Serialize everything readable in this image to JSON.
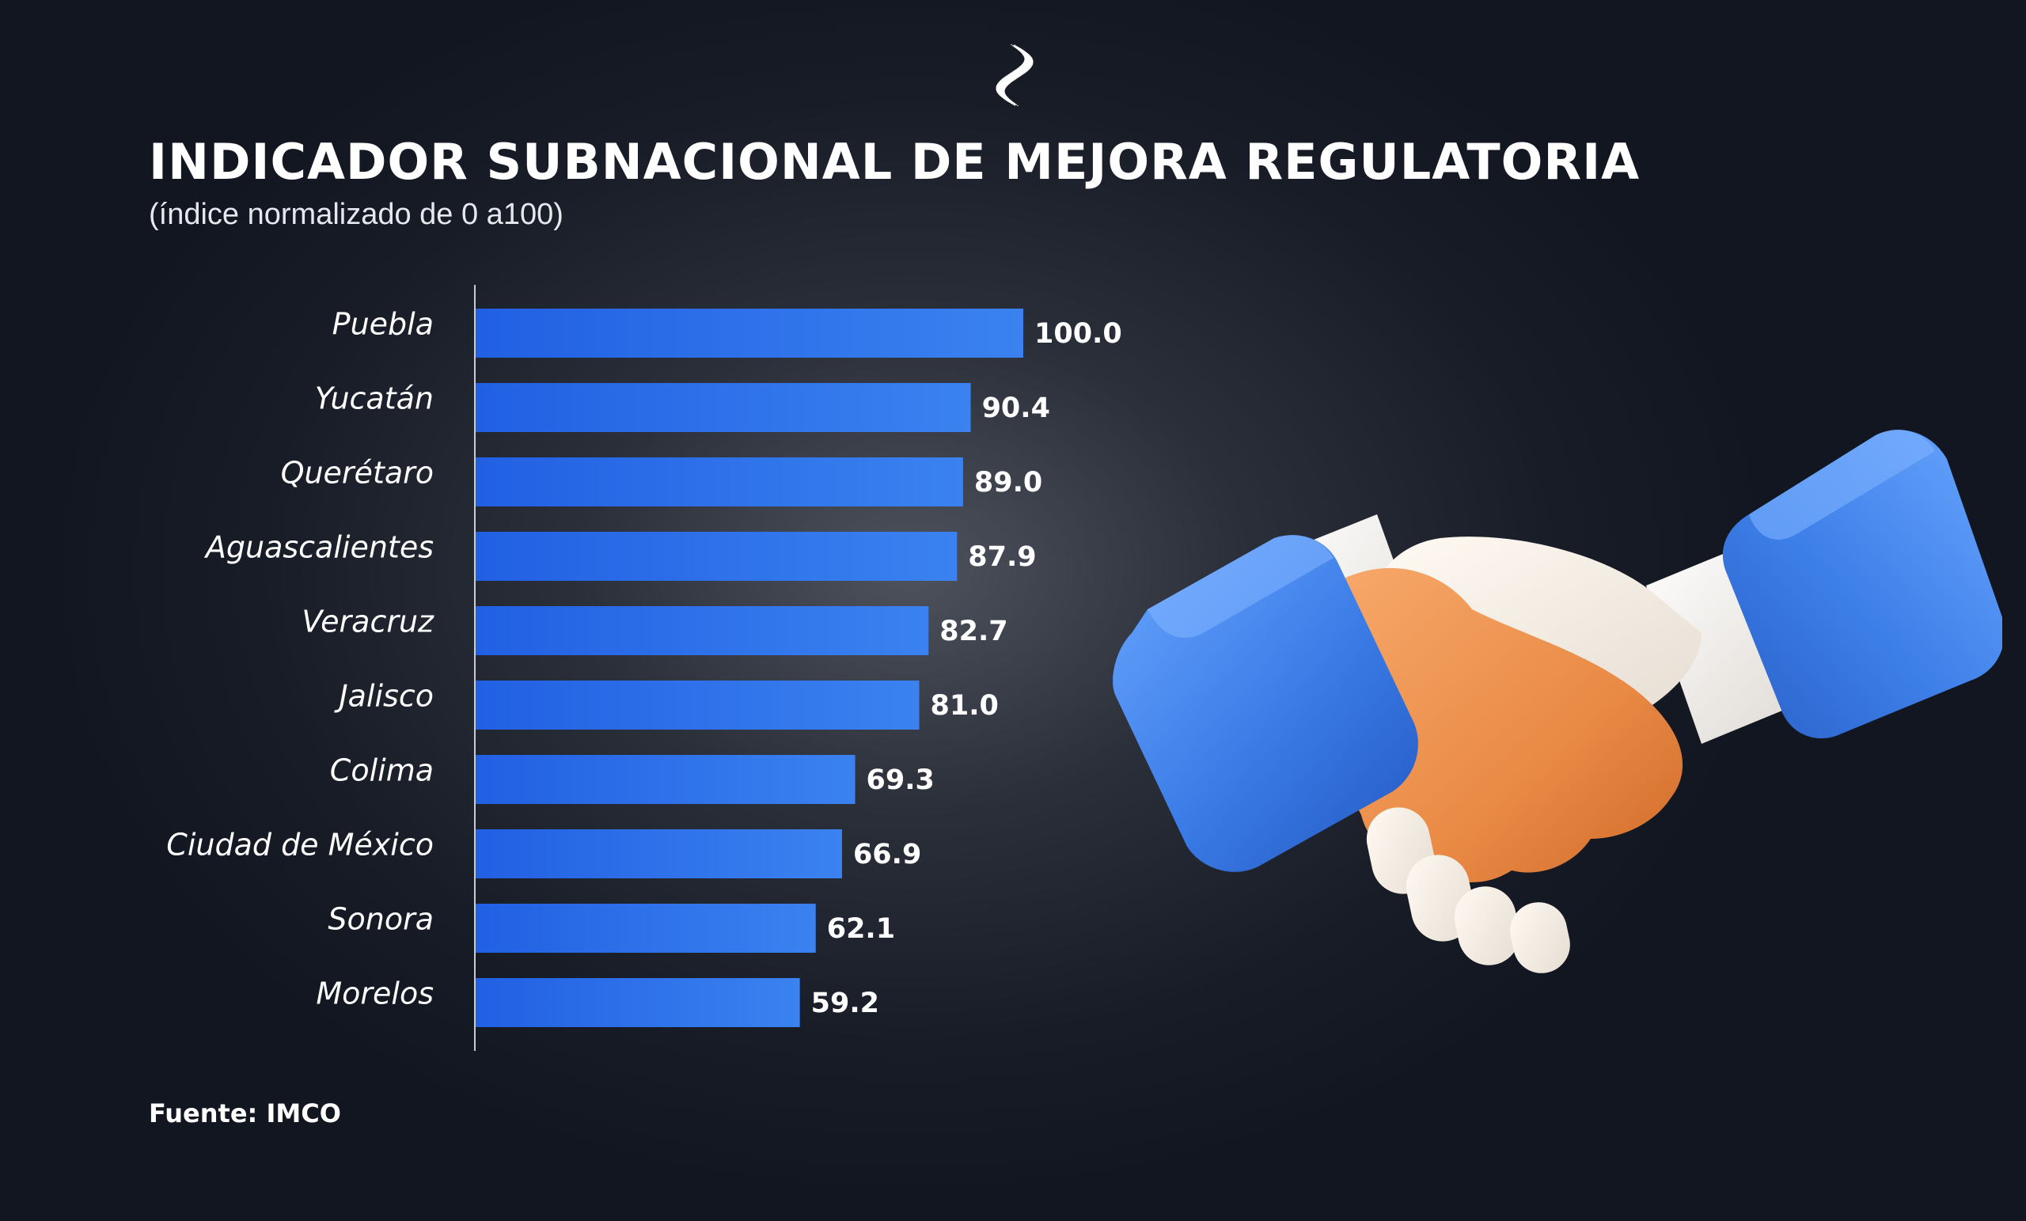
{
  "header": {
    "title": "INDICADOR SUBNACIONAL DE MEJORA REGULATORIA",
    "subtitle": "(índice normalizado de 0 a100)"
  },
  "footer": {
    "source": "Fuente: IMCO"
  },
  "icons": {
    "logo": "dotted-s-logo-icon",
    "illustration": "handshake-icon"
  },
  "colors": {
    "background": "#161a24",
    "bar_start": "#2160e3",
    "bar_end": "#3b82f0",
    "text": "#ffffff"
  },
  "chart_data": {
    "type": "bar",
    "orientation": "horizontal",
    "title": "INDICADOR SUBNACIONAL DE MEJORA REGULATORIA",
    "subtitle": "(índice normalizado de 0 a100)",
    "categories": [
      "Puebla",
      "Yucatán",
      "Querétaro",
      "Aguascalientes",
      "Veracruz",
      "Jalisco",
      "Colima",
      "Ciudad de México",
      "Sonora",
      "Morelos"
    ],
    "values": [
      100.0,
      90.4,
      89.0,
      87.9,
      82.7,
      81.0,
      69.3,
      66.9,
      62.1,
      59.2
    ],
    "value_labels": [
      "100.0",
      "90.4",
      "89.0",
      "87.9",
      "82.7",
      "81.0",
      "69.3",
      "66.9",
      "62.1",
      "59.2"
    ],
    "xlim": [
      0,
      100
    ],
    "xlabel": "",
    "ylabel": "",
    "grid": false,
    "legend": "none"
  }
}
